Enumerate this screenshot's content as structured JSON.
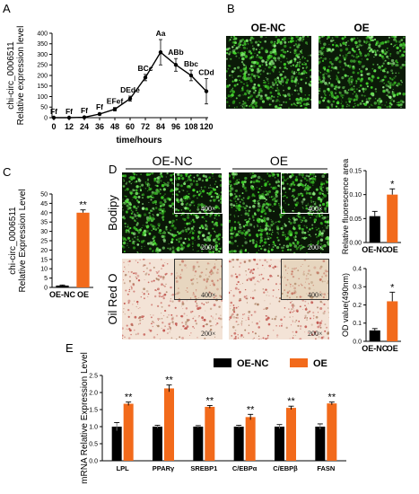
{
  "panel_letters": [
    "A",
    "B",
    "C",
    "D",
    "E"
  ],
  "colors": {
    "oe": "#f26a1b",
    "nc": "#000000",
    "line": "#000000",
    "fluor": "#5ec65a",
    "oil_bg": "#f3e3d6",
    "oil_dot": "#c0514a"
  },
  "panelB": {
    "labels": [
      "OE-NC",
      "OE"
    ]
  },
  "panelD": {
    "group_labels": [
      "OE-NC",
      "OE"
    ],
    "row_labels": [
      "Bodipy",
      "Oil Red O"
    ],
    "mag_large": "200×",
    "mag_inset": "400×"
  },
  "chart_data": [
    {
      "id": "A",
      "type": "line",
      "ylabel": "chi-circ_0006511\nRelative expression level",
      "xlabel": "time/hours",
      "x": [
        0,
        12,
        24,
        36,
        48,
        60,
        72,
        84,
        96,
        108,
        120
      ],
      "y": [
        0,
        0,
        2,
        17,
        40,
        90,
        190,
        310,
        250,
        200,
        125
      ],
      "err": [
        0,
        0,
        3,
        5,
        8,
        12,
        15,
        60,
        30,
        25,
        60
      ],
      "annotations": [
        "Ff",
        "Ff",
        "Ff",
        "Ff",
        "EFef",
        "DEde",
        "BCc",
        "Aa",
        "ABb",
        "Bbc",
        "CDd"
      ],
      "ylim": [
        0,
        400
      ],
      "yticks": [
        0,
        50,
        100,
        150,
        200,
        250,
        300,
        350,
        400
      ],
      "xticks": [
        0,
        12,
        24,
        36,
        48,
        60,
        72,
        84,
        96,
        108,
        120
      ]
    },
    {
      "id": "C",
      "type": "bar",
      "ylabel": "chi-circ_0006511\nRelative Expression Level",
      "categories": [
        "OE-NC",
        "OE"
      ],
      "values": [
        1,
        40
      ],
      "err": [
        0.3,
        1.5
      ],
      "annotations": [
        "",
        "**"
      ],
      "ylim": [
        0,
        50
      ],
      "yticks": [
        0,
        5,
        10,
        15,
        20,
        25,
        30,
        35,
        40,
        45,
        50
      ]
    },
    {
      "id": "D-top",
      "type": "bar",
      "ylabel": "Relative fluorescence area",
      "categories": [
        "OE-NC",
        "OE"
      ],
      "values": [
        0.055,
        0.1
      ],
      "err": [
        0.01,
        0.012
      ],
      "annotations": [
        "",
        "*"
      ],
      "ylim": [
        0,
        0.15
      ],
      "yticks": [
        0.0,
        0.05,
        0.1,
        0.15
      ]
    },
    {
      "id": "D-bottom",
      "type": "bar",
      "ylabel": "OD value(490nm)",
      "categories": [
        "OE-NC",
        "OE"
      ],
      "values": [
        0.06,
        0.22
      ],
      "err": [
        0.01,
        0.05
      ],
      "annotations": [
        "",
        "*"
      ],
      "ylim": [
        0,
        0.4
      ],
      "yticks": [
        0.0,
        0.1,
        0.2,
        0.3,
        0.4
      ]
    },
    {
      "id": "E",
      "type": "bar",
      "ylabel": "mRNA Relative  Expression Level",
      "categories": [
        "LPL",
        "PPARγ",
        "SREBP1",
        "C/EBPα",
        "C/EBPβ",
        "FASN"
      ],
      "series": [
        {
          "name": "OE-NC",
          "values": [
            1.0,
            1.0,
            1.0,
            1.0,
            1.0,
            1.0
          ],
          "err": [
            0.12,
            0.04,
            0.03,
            0.04,
            0.06,
            0.08
          ]
        },
        {
          "name": "OE",
          "values": [
            1.67,
            2.12,
            1.58,
            1.28,
            1.55,
            1.68
          ],
          "err": [
            0.05,
            0.1,
            0.04,
            0.08,
            0.05,
            0.04
          ]
        }
      ],
      "annotations": [
        "**",
        "**",
        "**",
        "**",
        "**",
        "**"
      ],
      "ylim": [
        0,
        2.5
      ],
      "yticks": [
        0.0,
        0.5,
        1.0,
        1.5,
        2.0,
        2.5
      ]
    }
  ]
}
